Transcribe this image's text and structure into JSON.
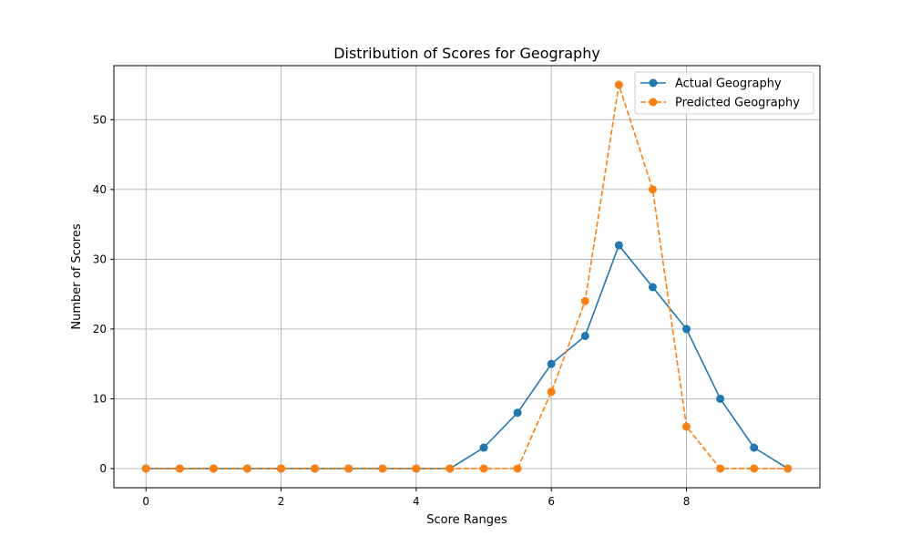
{
  "chart_data": {
    "type": "line",
    "title": "Distribution of Scores for Geography",
    "xlabel": "Score Ranges",
    "ylabel": "Number of Scores",
    "x": [
      0,
      0.5,
      1,
      1.5,
      2,
      2.5,
      3,
      3.5,
      4,
      4.5,
      5,
      5.5,
      6,
      6.5,
      7,
      7.5,
      8,
      8.5,
      9,
      9.5
    ],
    "xlim": [
      -0.475,
      9.975
    ],
    "ylim": [
      -2.75,
      57.75
    ],
    "xticks": [
      0,
      2,
      4,
      6,
      8
    ],
    "yticks": [
      0,
      10,
      20,
      30,
      40,
      50
    ],
    "grid": true,
    "legend_position": "top-right",
    "series": [
      {
        "name": "Actual Geography",
        "color": "#1f77b4",
        "style": "solid",
        "marker": "circle",
        "values": [
          0,
          0,
          0,
          0,
          0,
          0,
          0,
          0,
          0,
          0,
          3,
          8,
          15,
          19,
          32,
          26,
          20,
          10,
          3,
          0
        ]
      },
      {
        "name": "Predicted Geography",
        "color": "#ff7f0e",
        "style": "dashed",
        "marker": "circle",
        "values": [
          0,
          0,
          0,
          0,
          0,
          0,
          0,
          0,
          0,
          0,
          0,
          0,
          11,
          24,
          55,
          40,
          6,
          0,
          0,
          0
        ]
      }
    ]
  }
}
